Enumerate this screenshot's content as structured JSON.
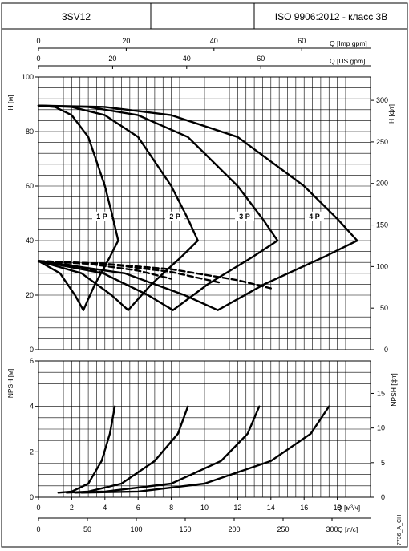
{
  "header": {
    "model": "3SV12",
    "standard": "ISO 9906:2012 - класс 3B"
  },
  "footnote": "7736_A_CH",
  "chart_data": [
    {
      "type": "line",
      "panel": "head",
      "y_label": "H [м]",
      "y_ticks": [
        0,
        20,
        40,
        60,
        80,
        100
      ],
      "ylim": [
        0,
        100
      ],
      "y2_label": "H [фт]",
      "y2_ticks": [
        0,
        50,
        100,
        150,
        200,
        250,
        300
      ],
      "top_axis_imp": {
        "label": "Q [Imp gpm]",
        "ticks": [
          0,
          20,
          40,
          60
        ]
      },
      "top_axis_us": {
        "label": "Q [US gpm]",
        "ticks": [
          0,
          20,
          40,
          60
        ]
      },
      "xlim": [
        0,
        20
      ],
      "grid": true,
      "series": [
        {
          "name": "1 P",
          "head": [
            [
              0,
              89.5
            ],
            [
              1,
              89
            ],
            [
              2,
              86
            ],
            [
              3,
              78
            ],
            [
              4,
              60
            ],
            [
              4.5,
              48
            ],
            [
              4.8,
              40
            ]
          ],
          "reverse": [
            [
              4.8,
              40
            ],
            [
              4.3,
              34
            ],
            [
              3.4,
              24
            ],
            [
              2.7,
              14.5
            ],
            [
              2.2,
              20
            ],
            [
              1.3,
              28
            ],
            [
              0,
              32.5
            ]
          ]
        },
        {
          "name": "2 P",
          "head": [
            [
              0,
              89.5
            ],
            [
              2,
              89
            ],
            [
              4,
              86
            ],
            [
              6,
              78
            ],
            [
              8,
              60
            ],
            [
              9,
              48
            ],
            [
              9.6,
              40
            ]
          ],
          "reverse": [
            [
              9.6,
              40
            ],
            [
              8.6,
              34
            ],
            [
              6.8,
              24
            ],
            [
              5.4,
              14.5
            ],
            [
              4.4,
              20
            ],
            [
              2.6,
              28
            ],
            [
              0,
              32.5
            ]
          ]
        },
        {
          "name": "3 P",
          "head": [
            [
              0,
              89.5
            ],
            [
              3,
              89
            ],
            [
              6,
              86
            ],
            [
              9,
              78
            ],
            [
              12,
              60
            ],
            [
              13.5,
              48
            ],
            [
              14.4,
              40
            ]
          ],
          "reverse": [
            [
              14.4,
              40
            ],
            [
              12.9,
              34
            ],
            [
              10.2,
              24
            ],
            [
              8.1,
              14.5
            ],
            [
              6.6,
              20
            ],
            [
              3.9,
              28
            ],
            [
              0,
              32.5
            ]
          ]
        },
        {
          "name": "4 P",
          "head": [
            [
              0,
              89.5
            ],
            [
              4,
              89
            ],
            [
              8,
              86
            ],
            [
              12,
              78
            ],
            [
              16,
              60
            ],
            [
              18,
              48
            ],
            [
              19.2,
              40
            ]
          ],
          "reverse": [
            [
              19.2,
              40
            ],
            [
              17.2,
              34
            ],
            [
              13.6,
              24
            ],
            [
              10.8,
              14.5
            ],
            [
              8.8,
              20
            ],
            [
              5.2,
              28
            ],
            [
              0,
              32.5
            ]
          ]
        }
      ],
      "dashed": [
        [
          [
            0,
            32.5
          ],
          [
            2,
            31
          ],
          [
            4,
            28
          ]
        ],
        [
          [
            0,
            32.5
          ],
          [
            3,
            31.5
          ],
          [
            6,
            29
          ],
          [
            8,
            26
          ]
        ],
        [
          [
            0,
            32.5
          ],
          [
            4,
            31.5
          ],
          [
            8,
            28.5
          ],
          [
            11,
            24.5
          ]
        ],
        [
          [
            0,
            32.5
          ],
          [
            4,
            31.5
          ],
          [
            8,
            29.5
          ],
          [
            12,
            25.5
          ],
          [
            14,
            22.5
          ]
        ]
      ]
    },
    {
      "type": "line",
      "panel": "npsh",
      "y_label": "NPSH [м]",
      "y_ticks": [
        0,
        2,
        4,
        6
      ],
      "ylim": [
        0,
        6
      ],
      "y2_label": "NPSH [фт]",
      "y2_ticks": [
        0,
        5,
        10,
        15
      ],
      "x_label": "Q [м³/ч]",
      "x_ticks": [
        0,
        2,
        4,
        6,
        8,
        10,
        12,
        14,
        16,
        18
      ],
      "x2_label": "Q [л/с]",
      "x2_ticks": [
        0,
        50,
        100,
        150,
        200,
        250,
        300
      ],
      "xlim": [
        0,
        20
      ],
      "grid": true,
      "series": [
        {
          "name": "1 P",
          "values": [
            [
              1.2,
              0.2
            ],
            [
              2,
              0.25
            ],
            [
              3,
              0.6
            ],
            [
              3.8,
              1.6
            ],
            [
              4.3,
              2.8
            ],
            [
              4.6,
              4
            ]
          ]
        },
        {
          "name": "2 P",
          "values": [
            [
              1.7,
              0.2
            ],
            [
              3,
              0.25
            ],
            [
              5,
              0.6
            ],
            [
              7,
              1.6
            ],
            [
              8.4,
              2.8
            ],
            [
              9,
              4
            ]
          ]
        },
        {
          "name": "3 P",
          "values": [
            [
              2.2,
              0.2
            ],
            [
              4,
              0.25
            ],
            [
              8,
              0.6
            ],
            [
              11,
              1.6
            ],
            [
              12.6,
              2.8
            ],
            [
              13.3,
              4
            ]
          ]
        },
        {
          "name": "4 P",
          "values": [
            [
              2.6,
              0.2
            ],
            [
              6,
              0.25
            ],
            [
              10,
              0.6
            ],
            [
              14,
              1.6
            ],
            [
              16.4,
              2.8
            ],
            [
              17.5,
              4
            ]
          ]
        }
      ]
    }
  ]
}
